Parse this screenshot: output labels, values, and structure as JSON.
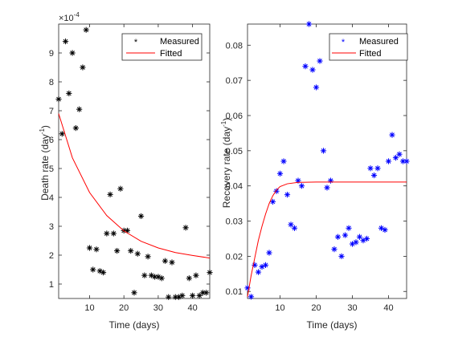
{
  "figure": {
    "background": "#ffffff"
  },
  "chart_data": [
    {
      "type": "scatter",
      "xlabel": "Time (days)",
      "ylabel": "Death rate (day",
      "ylabel_sup": "-1",
      "ylabel_close": ")",
      "exponent_label": "×10",
      "exponent_sup": "-4",
      "xlim": [
        1,
        45
      ],
      "ylim": [
        0.5,
        10
      ],
      "xticks": [
        10,
        20,
        30,
        40
      ],
      "yticks": [
        1,
        2,
        3,
        4,
        5,
        6,
        7,
        8,
        9
      ],
      "ytick_labels": [
        "1",
        "2",
        "3",
        "4",
        "5",
        "6",
        "7",
        "8",
        "9"
      ],
      "legend": {
        "position": "top-right",
        "entries": [
          {
            "label": "Measured",
            "marker": "*",
            "color": "#000000"
          },
          {
            "label": "Fitted",
            "line": true,
            "color": "#ff0000"
          }
        ]
      },
      "series": [
        {
          "name": "Measured",
          "kind": "markers",
          "color": "#000000",
          "points": [
            [
              1,
              7.4
            ],
            [
              2,
              6.2
            ],
            [
              3,
              9.4
            ],
            [
              4,
              7.6
            ],
            [
              5,
              9.0
            ],
            [
              6,
              6.4
            ],
            [
              7,
              7.05
            ],
            [
              8,
              8.5
            ],
            [
              9,
              9.8
            ],
            [
              10,
              2.25
            ],
            [
              11,
              1.5
            ],
            [
              12,
              2.2
            ],
            [
              13,
              1.45
            ],
            [
              14,
              1.4
            ],
            [
              15,
              2.75
            ],
            [
              16,
              4.1
            ],
            [
              17,
              2.75
            ],
            [
              18,
              2.15
            ],
            [
              19,
              4.3
            ],
            [
              20,
              2.85
            ],
            [
              21,
              2.85
            ],
            [
              22,
              2.15
            ],
            [
              23,
              0.7
            ],
            [
              24,
              2.05
            ],
            [
              25,
              3.35
            ],
            [
              26,
              1.3
            ],
            [
              27,
              1.95
            ],
            [
              28,
              1.3
            ],
            [
              29,
              1.25
            ],
            [
              30,
              1.25
            ],
            [
              31,
              1.2
            ],
            [
              32,
              1.8
            ],
            [
              33,
              0.55
            ],
            [
              34,
              1.75
            ],
            [
              35,
              0.55
            ],
            [
              36,
              0.55
            ],
            [
              37,
              0.6
            ],
            [
              38,
              2.95
            ],
            [
              39,
              1.2
            ],
            [
              40,
              0.6
            ],
            [
              41,
              1.3
            ],
            [
              42,
              0.6
            ],
            [
              43,
              0.7
            ],
            [
              44,
              0.7
            ],
            [
              45,
              1.4
            ]
          ]
        },
        {
          "name": "Fitted",
          "kind": "line",
          "color": "#ff0000",
          "points": [
            [
              1,
              6.9
            ],
            [
              5,
              5.37
            ],
            [
              10,
              4.17
            ],
            [
              15,
              3.37
            ],
            [
              20,
              2.84
            ],
            [
              25,
              2.48
            ],
            [
              30,
              2.25
            ],
            [
              35,
              2.09
            ],
            [
              40,
              1.99
            ],
            [
              45,
              1.9
            ]
          ]
        }
      ]
    },
    {
      "type": "scatter",
      "xlabel": "Time (days)",
      "ylabel": "Recovery rate (day",
      "ylabel_sup": "-1",
      "ylabel_close": ")",
      "xlim": [
        1,
        45
      ],
      "ylim": [
        0.008,
        0.086
      ],
      "xticks": [
        10,
        20,
        30,
        40
      ],
      "yticks": [
        0.01,
        0.02,
        0.03,
        0.04,
        0.05,
        0.06,
        0.07,
        0.08
      ],
      "ytick_labels": [
        "0.01",
        "0.02",
        "0.03",
        "0.04",
        "0.05",
        "0.06",
        "0.07",
        "0.08"
      ],
      "legend": {
        "position": "top-right",
        "entries": [
          {
            "label": "Measured",
            "marker": "*",
            "color": "#0000ff"
          },
          {
            "label": "Fitted",
            "line": true,
            "color": "#ff0000"
          }
        ]
      },
      "series": [
        {
          "name": "Measured",
          "kind": "markers",
          "color": "#0000ff",
          "points": [
            [
              1,
              0.011
            ],
            [
              2,
              0.0085
            ],
            [
              3,
              0.0175
            ],
            [
              4,
              0.0155
            ],
            [
              5,
              0.017
            ],
            [
              6,
              0.0175
            ],
            [
              7,
              0.021
            ],
            [
              8,
              0.0355
            ],
            [
              9,
              0.0385
            ],
            [
              10,
              0.0435
            ],
            [
              11,
              0.047
            ],
            [
              12,
              0.0375
            ],
            [
              13,
              0.029
            ],
            [
              14,
              0.028
            ],
            [
              15,
              0.0415
            ],
            [
              16,
              0.04
            ],
            [
              17,
              0.074
            ],
            [
              18,
              0.086
            ],
            [
              19,
              0.073
            ],
            [
              20,
              0.068
            ],
            [
              21,
              0.0755
            ],
            [
              22,
              0.05
            ],
            [
              23,
              0.0395
            ],
            [
              24,
              0.0415
            ],
            [
              25,
              0.022
            ],
            [
              26,
              0.0255
            ],
            [
              27,
              0.02
            ],
            [
              28,
              0.026
            ],
            [
              29,
              0.028
            ],
            [
              30,
              0.0235
            ],
            [
              31,
              0.024
            ],
            [
              32,
              0.0255
            ],
            [
              33,
              0.0245
            ],
            [
              34,
              0.025
            ],
            [
              35,
              0.045
            ],
            [
              36,
              0.043
            ],
            [
              37,
              0.045
            ],
            [
              38,
              0.028
            ],
            [
              39,
              0.0275
            ],
            [
              40,
              0.047
            ],
            [
              41,
              0.0545
            ],
            [
              42,
              0.048
            ],
            [
              43,
              0.049
            ],
            [
              44,
              0.047
            ],
            [
              45,
              0.047
            ]
          ]
        },
        {
          "name": "Fitted",
          "kind": "line",
          "color": "#ff0000",
          "points": [
            [
              1,
              0.0085
            ],
            [
              2,
              0.0145
            ],
            [
              3,
              0.0195
            ],
            [
              4,
              0.0245
            ],
            [
              5,
              0.0285
            ],
            [
              6,
              0.032
            ],
            [
              7,
              0.035
            ],
            [
              8,
              0.0372
            ],
            [
              9,
              0.0388
            ],
            [
              10,
              0.0398
            ],
            [
              12,
              0.0406
            ],
            [
              15,
              0.041
            ],
            [
              20,
              0.0411
            ],
            [
              30,
              0.0411
            ],
            [
              40,
              0.0411
            ],
            [
              45,
              0.0411
            ]
          ]
        }
      ]
    }
  ]
}
